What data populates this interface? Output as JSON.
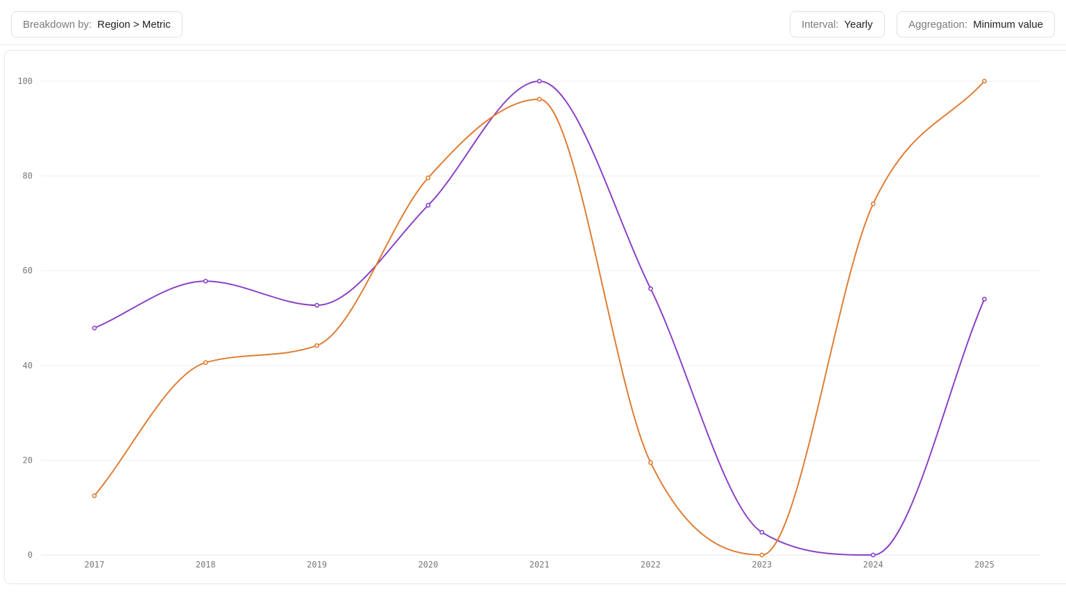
{
  "toolbar": {
    "breakdown": {
      "label": "Breakdown by:",
      "value": "Region > Metric"
    },
    "interval": {
      "label": "Interval:",
      "value": "Yearly"
    },
    "aggregation": {
      "label": "Aggregation:",
      "value": "Minimum value"
    }
  },
  "colors": {
    "series_a": "#8a3fc5",
    "series_b": "#e07b31",
    "grid": "#efeff2"
  },
  "chart_data": {
    "type": "line",
    "x": [
      "2017",
      "2018",
      "2019",
      "2020",
      "2021",
      "2022",
      "2023",
      "2024",
      "2025"
    ],
    "ylim": [
      0,
      100
    ],
    "yticks": [
      0,
      20,
      40,
      60,
      80,
      100
    ],
    "grid": true,
    "smooth": true,
    "series": [
      {
        "values": [
          47.9,
          57.8,
          52.7,
          73.8,
          100,
          56.2,
          4.8,
          0,
          54.0
        ],
        "color": "#8a3fc5"
      },
      {
        "values": [
          12.5,
          40.6,
          44.2,
          79.6,
          96.2,
          19.5,
          0,
          74.1,
          100
        ],
        "color": "#e07b31"
      }
    ]
  }
}
